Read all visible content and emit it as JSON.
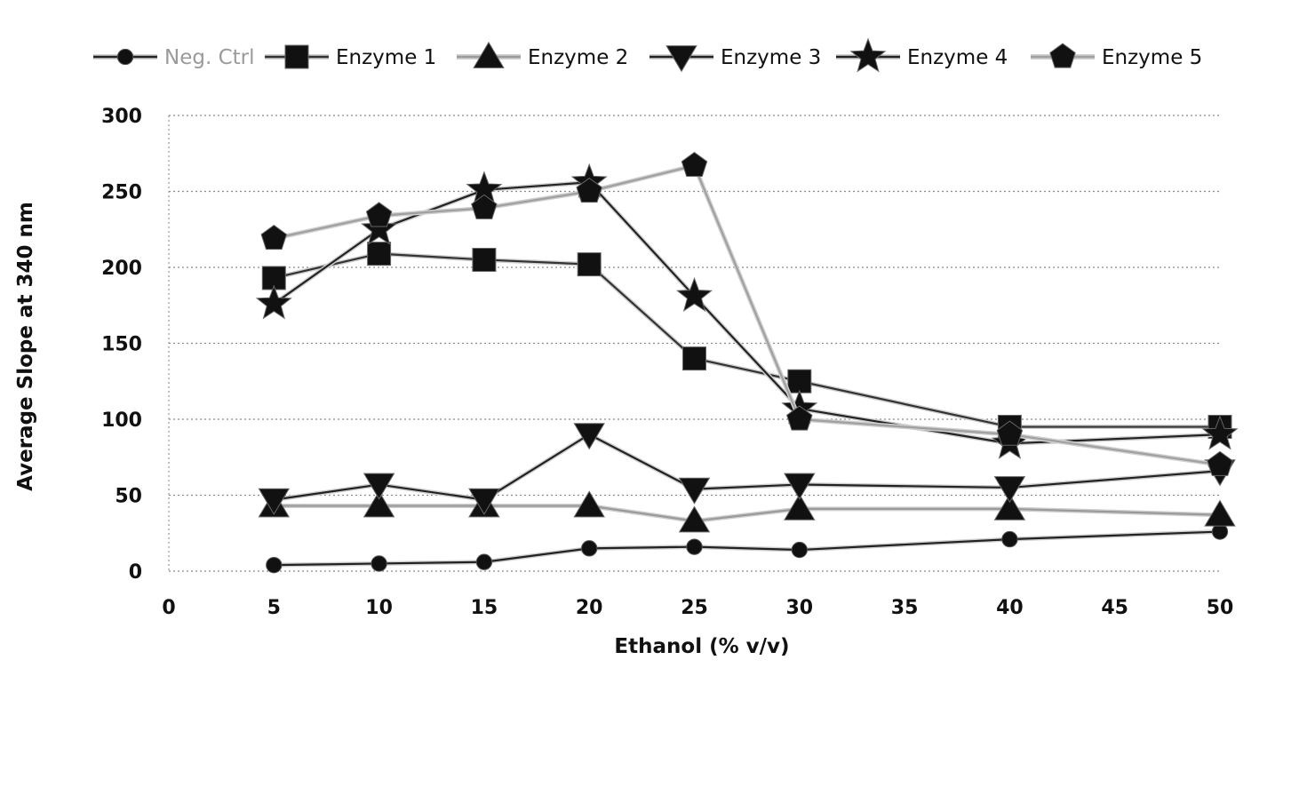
{
  "chart_data": {
    "type": "line",
    "title": "",
    "xlabel": "Ethanol (% v/v)",
    "ylabel": "Average Slope at 340 nm",
    "xlim": [
      0,
      50
    ],
    "ylim": [
      0,
      300
    ],
    "xticks": [
      0,
      5,
      10,
      15,
      20,
      25,
      30,
      35,
      40,
      45,
      50
    ],
    "yticks": [
      0,
      50,
      100,
      150,
      200,
      250,
      300
    ],
    "grid": "horizontal dotted",
    "legend_position": "top",
    "x": [
      5,
      10,
      15,
      20,
      25,
      30,
      40,
      50
    ],
    "series": [
      {
        "name": "Neg. Ctrl",
        "marker": "circle",
        "line_color": "#222222",
        "legend_faded": true,
        "values": [
          4,
          5,
          6,
          15,
          16,
          14,
          21,
          26
        ]
      },
      {
        "name": "Enzyme 1",
        "marker": "square",
        "line_color": "#333333",
        "legend_faded": false,
        "values": [
          193,
          209,
          205,
          202,
          140,
          125,
          95,
          95
        ]
      },
      {
        "name": "Enzyme 2",
        "marker": "triangle-up",
        "line_color": "#9a9a9a",
        "legend_faded": false,
        "values": [
          43,
          43,
          43,
          43,
          33,
          41,
          41,
          37
        ]
      },
      {
        "name": "Enzyme 3",
        "marker": "triangle-down",
        "line_color": "#222222",
        "legend_faded": false,
        "values": [
          47,
          57,
          47,
          90,
          54,
          57,
          55,
          66
        ]
      },
      {
        "name": "Enzyme 4",
        "marker": "star",
        "line_color": "#222222",
        "legend_faded": false,
        "values": [
          176,
          225,
          251,
          256,
          181,
          107,
          84,
          90
        ]
      },
      {
        "name": "Enzyme 5",
        "marker": "pentagon",
        "line_color": "#a0a0a0",
        "legend_faded": false,
        "values": [
          219,
          234,
          239,
          250,
          267,
          100,
          90,
          70
        ]
      }
    ]
  }
}
